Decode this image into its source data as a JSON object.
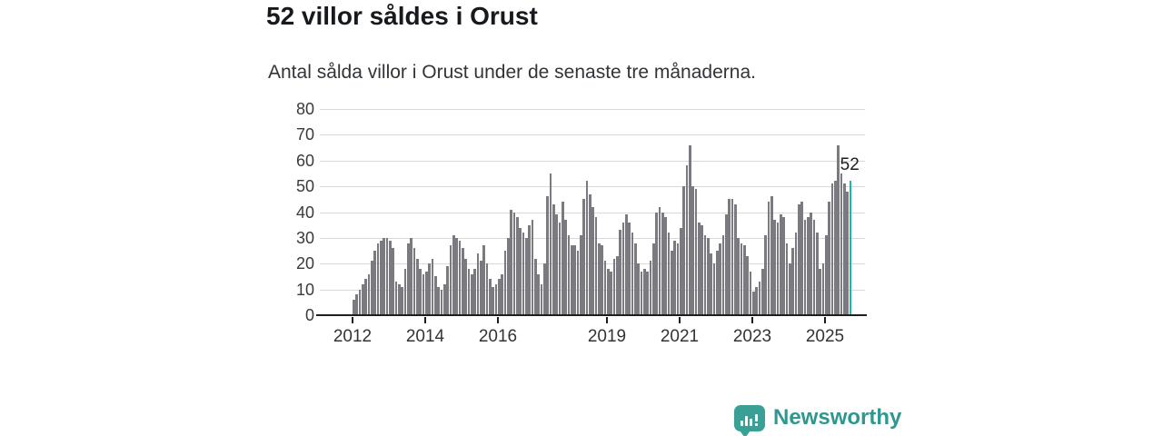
{
  "header": {
    "title": "52 villor såldes i Orust",
    "subtitle": "Antal sålda villor i Orust under de senaste tre månaderna."
  },
  "chart_data": {
    "type": "bar",
    "title": "52 villor såldes i Orust",
    "subtitle": "Antal sålda villor i Orust under de senaste tre månaderna.",
    "x_start_month": "2012-01",
    "x_end_month": "2025-09",
    "values": [
      6,
      8,
      10,
      12,
      14,
      16,
      21,
      25,
      28,
      29,
      30,
      30,
      29,
      26,
      13,
      12,
      11,
      18,
      28,
      30,
      26,
      22,
      18,
      16,
      17,
      20,
      22,
      15,
      11,
      10,
      12,
      19,
      27,
      31,
      30,
      29,
      26,
      22,
      18,
      16,
      18,
      24,
      21,
      27,
      20,
      14,
      11,
      12,
      14,
      16,
      25,
      30,
      41,
      40,
      38,
      34,
      32,
      30,
      35,
      37,
      22,
      16,
      12,
      20,
      46,
      55,
      43,
      39,
      36,
      44,
      37,
      31,
      27,
      27,
      25,
      31,
      45,
      52,
      47,
      42,
      38,
      28,
      27,
      21,
      18,
      17,
      22,
      23,
      33,
      36,
      39,
      36,
      32,
      28,
      20,
      17,
      18,
      17,
      21,
      28,
      40,
      42,
      40,
      38,
      32,
      25,
      29,
      28,
      34,
      50,
      58,
      66,
      50,
      49,
      36,
      35,
      31,
      30,
      24,
      20,
      25,
      28,
      31,
      39,
      45,
      45,
      43,
      30,
      28,
      27,
      23,
      17,
      9,
      11,
      13,
      18,
      31,
      44,
      46,
      37,
      36,
      39,
      38,
      28,
      20,
      26,
      32,
      43,
      44,
      37,
      38,
      40,
      37,
      32,
      18,
      20,
      31,
      44,
      51,
      52,
      66,
      55,
      51,
      48,
      52
    ],
    "highlight_index": 164,
    "highlight_value_label": "52",
    "ylim": [
      0,
      80
    ],
    "y_ticks": [
      0,
      10,
      20,
      30,
      40,
      50,
      60,
      70,
      80
    ],
    "x_tick_labels": [
      "2012",
      "2014",
      "2016",
      "2019",
      "2021",
      "2023",
      "2025"
    ],
    "x_tick_month_index": [
      0,
      24,
      48,
      84,
      108,
      132,
      156
    ],
    "grid": true,
    "legend": "none",
    "bar_color": "#7a7a80",
    "highlight_color": "#17b8b2"
  },
  "colors": {
    "bar": "#7a7a80",
    "highlight": "#17b8b2",
    "brand": "#2f978f"
  },
  "footer": {
    "brand": "Newsworthy"
  }
}
